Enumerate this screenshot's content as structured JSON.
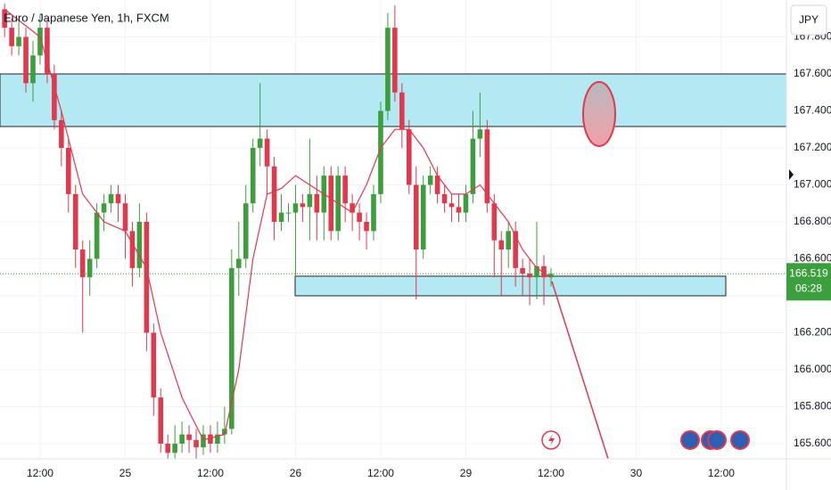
{
  "chart_data": {
    "type": "candlestick",
    "title": "Euro / Japanese Yen, 1h, FXCM",
    "currency": "JPY",
    "up_color": "#3d9e3d",
    "down_color": "#e0384c",
    "x": [
      -5,
      -4,
      -3,
      -2,
      -1,
      0,
      1,
      2,
      3,
      4,
      5,
      6,
      7,
      8,
      9,
      10,
      11,
      12,
      13,
      14,
      15,
      16,
      17,
      18,
      19,
      20,
      21,
      22,
      23,
      24,
      25,
      26,
      27,
      28,
      29,
      30,
      31,
      32,
      33,
      34,
      35,
      36,
      37,
      38,
      39,
      40,
      41,
      42,
      43,
      44,
      45,
      46,
      47,
      48,
      49,
      50,
      51,
      52,
      53,
      54,
      55,
      56,
      57,
      58,
      59,
      60,
      61,
      62,
      63,
      64,
      65,
      66,
      67,
      68,
      69,
      70,
      71,
      72
    ],
    "open": [
      167.95,
      167.85,
      167.75,
      167.8,
      167.55,
      167.7,
      167.85,
      167.6,
      167.35,
      167.2,
      166.95,
      166.65,
      166.5,
      166.6,
      166.85,
      166.9,
      166.95,
      166.9,
      166.75,
      166.55,
      166.8,
      166.2,
      165.85,
      165.6,
      165.55,
      165.6,
      165.65,
      165.62,
      165.58,
      165.65,
      165.6,
      165.65,
      165.68,
      166.55,
      166.6,
      166.9,
      167.2,
      167.25,
      167.1,
      166.8,
      166.85,
      166.85,
      166.9,
      166.88,
      166.95,
      166.85,
      167.05,
      166.75,
      167.05,
      166.9,
      166.85,
      166.8,
      166.75,
      166.95,
      167.4,
      167.85,
      167.5,
      167.3,
      167.0,
      166.65,
      167.0,
      167.05,
      166.95,
      166.9,
      166.88,
      166.85,
      166.95,
      167.25,
      167.3,
      166.9,
      166.7,
      166.65,
      166.75,
      166.55,
      166.52,
      166.5,
      166.56,
      166.5
    ],
    "high": [
      167.98,
      167.9,
      167.88,
      167.85,
      167.78,
      167.92,
      167.9,
      167.65,
      167.4,
      167.25,
      167.0,
      166.7,
      166.7,
      166.9,
      166.95,
      167.0,
      167.0,
      166.95,
      166.8,
      166.9,
      166.85,
      166.25,
      165.9,
      165.65,
      165.7,
      165.72,
      165.7,
      165.68,
      165.7,
      165.7,
      165.72,
      165.8,
      166.65,
      166.8,
      167.0,
      167.25,
      167.55,
      167.3,
      167.15,
      166.95,
      166.9,
      167.0,
      166.95,
      167.25,
      167.05,
      167.1,
      167.1,
      167.1,
      167.1,
      166.95,
      166.9,
      166.85,
      167.0,
      167.45,
      167.93,
      167.97,
      167.55,
      167.35,
      167.1,
      167.05,
      167.1,
      167.1,
      167.0,
      166.95,
      166.95,
      167.0,
      167.4,
      167.5,
      167.35,
      166.95,
      166.75,
      166.8,
      166.8,
      166.6,
      166.6,
      166.8,
      166.62,
      166.55
    ],
    "low": [
      167.8,
      167.7,
      167.7,
      167.5,
      167.45,
      167.65,
      167.55,
      167.3,
      167.1,
      166.85,
      166.55,
      166.2,
      166.4,
      166.55,
      166.75,
      166.85,
      166.8,
      166.6,
      166.45,
      166.5,
      166.1,
      165.75,
      165.55,
      165.52,
      165.52,
      165.55,
      165.55,
      165.52,
      165.54,
      165.55,
      165.55,
      165.6,
      165.65,
      166.4,
      166.55,
      166.85,
      167.1,
      166.95,
      166.7,
      166.75,
      166.8,
      166.5,
      166.8,
      166.7,
      166.7,
      166.7,
      166.7,
      166.7,
      166.8,
      166.75,
      166.7,
      166.65,
      166.7,
      166.9,
      167.35,
      167.45,
      167.2,
      166.95,
      166.38,
      166.6,
      166.95,
      166.9,
      166.85,
      166.8,
      166.8,
      166.8,
      166.9,
      167.15,
      166.85,
      166.5,
      166.4,
      166.55,
      166.45,
      166.4,
      166.35,
      166.38,
      166.35,
      166.45
    ],
    "close": [
      167.85,
      167.75,
      167.8,
      167.55,
      167.7,
      167.85,
      167.6,
      167.35,
      167.2,
      166.95,
      166.65,
      166.5,
      166.6,
      166.85,
      166.9,
      166.95,
      166.9,
      166.75,
      166.55,
      166.8,
      166.2,
      165.85,
      165.6,
      165.55,
      165.6,
      165.65,
      165.62,
      165.58,
      165.65,
      165.6,
      165.65,
      165.68,
      166.55,
      166.6,
      166.9,
      167.2,
      167.25,
      167.1,
      166.8,
      166.85,
      166.85,
      166.9,
      166.88,
      166.95,
      166.85,
      167.05,
      166.75,
      167.05,
      166.9,
      166.85,
      166.8,
      166.75,
      166.95,
      167.4,
      167.85,
      167.5,
      167.3,
      167.0,
      166.65,
      167.0,
      167.05,
      166.95,
      166.9,
      166.88,
      166.85,
      166.95,
      167.25,
      167.3,
      166.9,
      166.7,
      166.65,
      166.75,
      166.55,
      166.52,
      166.5,
      166.56,
      166.5,
      166.519
    ],
    "ma": {
      "color": "#e0384c",
      "x": [
        -5,
        0,
        3,
        6,
        9,
        12,
        15,
        17,
        20,
        23,
        26,
        28,
        30,
        32,
        34,
        36,
        38,
        40,
        44,
        46,
        48,
        50,
        52,
        54,
        56,
        58,
        60,
        62,
        64,
        66,
        68,
        70,
        72
      ],
      "values": [
        167.95,
        167.8,
        167.4,
        166.95,
        166.8,
        166.75,
        166.55,
        166.2,
        165.85,
        165.62,
        165.65,
        166.0,
        166.6,
        166.95,
        166.98,
        167.05,
        167.0,
        166.95,
        166.85,
        167.0,
        167.2,
        167.3,
        167.3,
        167.2,
        167.05,
        166.95,
        166.95,
        167.0,
        166.9,
        166.8,
        166.65,
        166.55,
        166.5
      ]
    },
    "last_price": 166.519,
    "countdown": "06:28",
    "last_color": "#3d9e3d",
    "xlim": [
      -5.65,
      105.18
    ],
    "ylim": [
      165.518,
      168.0
    ],
    "xticks": [
      {
        "value": 0,
        "label": "12:00"
      },
      {
        "value": 12,
        "label": "25"
      },
      {
        "value": 24,
        "label": "12:00"
      },
      {
        "value": 36,
        "label": "26"
      },
      {
        "value": 48,
        "label": "12:00"
      },
      {
        "value": 60,
        "label": "29"
      },
      {
        "value": 72,
        "label": "12:00"
      },
      {
        "value": 84,
        "label": "30"
      },
      {
        "value": 96,
        "label": "12:00"
      }
    ],
    "yticks": [
      {
        "value": 165.6,
        "label": "165.600"
      },
      {
        "value": 165.8,
        "label": "165.800"
      },
      {
        "value": 166.0,
        "label": "166.000"
      },
      {
        "value": 166.2,
        "label": "166.200"
      },
      {
        "value": 166.4,
        "label": "166.400"
      },
      {
        "value": 166.6,
        "label": "166.600"
      },
      {
        "value": 166.8,
        "label": "166.800"
      },
      {
        "value": 167.0,
        "label": "167.000"
      },
      {
        "value": 167.2,
        "label": "167.200"
      },
      {
        "value": 167.4,
        "label": "167.400"
      },
      {
        "value": 167.6,
        "label": "167.600"
      },
      {
        "value": 167.8,
        "label": "167.800"
      }
    ],
    "grid": true
  }
}
